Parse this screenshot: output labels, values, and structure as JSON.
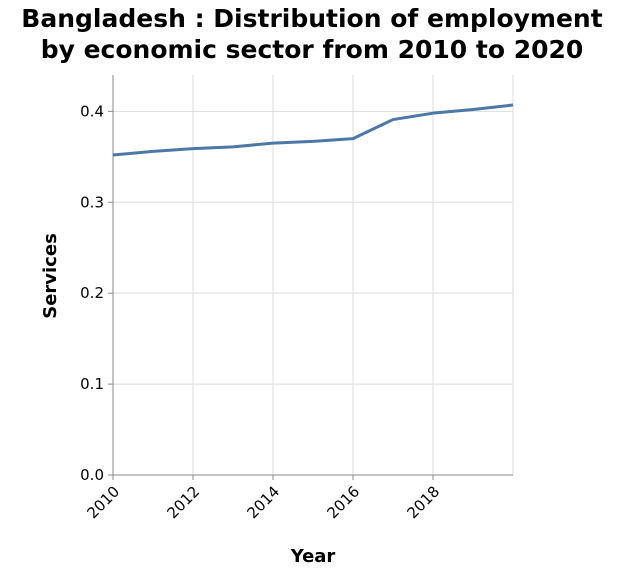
{
  "chart_data": {
    "type": "line",
    "title": [
      "Bangladesh : Distribution of employment",
      "by economic sector from 2010 to 2020"
    ],
    "xlabel": "Year",
    "ylabel": "Services",
    "x_ticks": [
      "2010",
      "2012",
      "2014",
      "2016",
      "2018"
    ],
    "y_ticks": [
      "0.0",
      "0.1",
      "0.2",
      "0.3",
      "0.4"
    ],
    "xlim": [
      2010,
      2020
    ],
    "ylim": [
      0,
      0.44
    ],
    "grid": true,
    "series": [
      {
        "color": "#4c78a8",
        "x": [
          2010,
          2011,
          2012,
          2013,
          2014,
          2015,
          2016,
          2017,
          2018,
          2019,
          2020
        ],
        "values": [
          0.352,
          0.356,
          0.359,
          0.361,
          0.365,
          0.367,
          0.37,
          0.391,
          0.398,
          0.402,
          0.407
        ]
      }
    ]
  }
}
